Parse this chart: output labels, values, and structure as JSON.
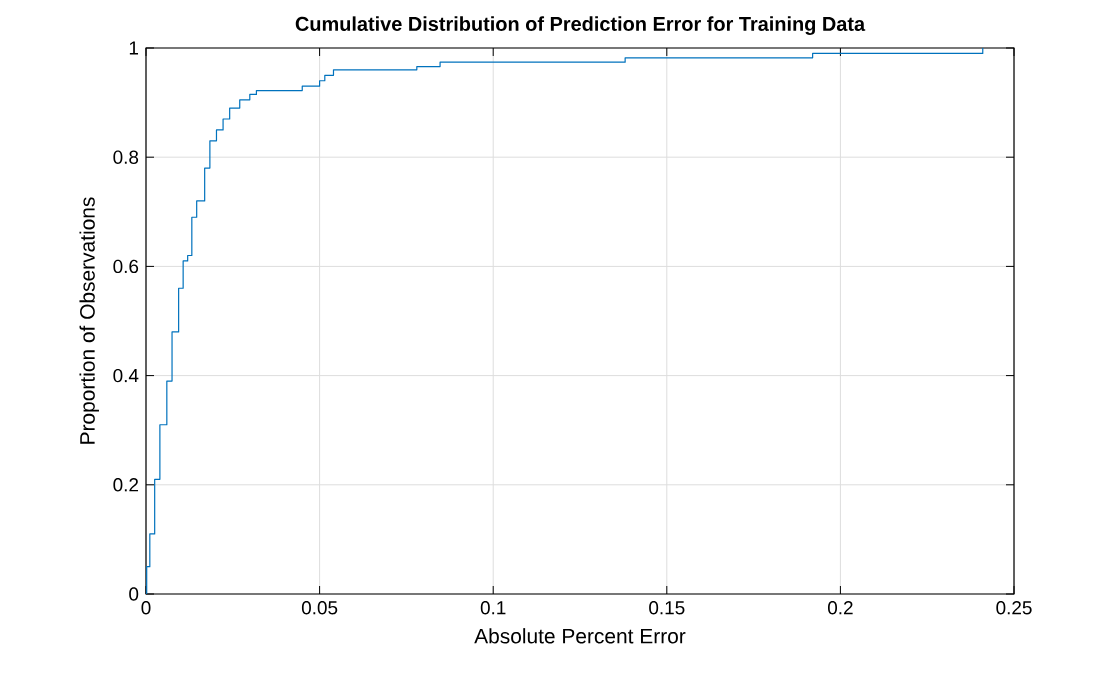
{
  "chart_data": {
    "type": "step",
    "title": "Cumulative Distribution of Prediction Error for Training Data",
    "xlabel": "Absolute Percent Error",
    "ylabel": "Proportion of Observations",
    "xlim": [
      0,
      0.25
    ],
    "ylim": [
      0,
      1
    ],
    "xticks": [
      0,
      0.05,
      0.1,
      0.15,
      0.2,
      0.25
    ],
    "yticks": [
      0,
      0.2,
      0.4,
      0.6,
      0.8,
      1
    ],
    "grid": true,
    "series": [
      {
        "color": "#0072bd",
        "x": [
          0,
          0.0002,
          0.0011,
          0.0025,
          0.004,
          0.006,
          0.0075,
          0.0094,
          0.0107,
          0.012,
          0.0132,
          0.0146,
          0.0169,
          0.0184,
          0.0203,
          0.0222,
          0.0241,
          0.027,
          0.0299,
          0.0318,
          0.0437,
          0.045,
          0.05,
          0.0515,
          0.054,
          0.078,
          0.0847,
          0.138,
          0.192,
          0.241
        ],
        "values": [
          0,
          0.05,
          0.11,
          0.21,
          0.31,
          0.39,
          0.48,
          0.56,
          0.61,
          0.62,
          0.69,
          0.72,
          0.78,
          0.83,
          0.85,
          0.87,
          0.89,
          0.905,
          0.915,
          0.922,
          0.922,
          0.93,
          0.94,
          0.95,
          0.96,
          0.966,
          0.974,
          0.982,
          0.99,
          1
        ]
      }
    ]
  }
}
